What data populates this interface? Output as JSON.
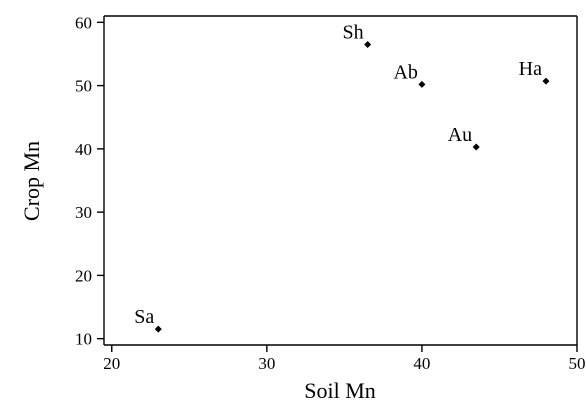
{
  "chart_data": {
    "type": "scatter",
    "title": "",
    "xlabel": "Soil Mn",
    "ylabel": "Crop Mn",
    "xlim": [
      19.5,
      50.0
    ],
    "ylim": [
      9.0,
      61.0
    ],
    "xticks": [
      20,
      30,
      40,
      50
    ],
    "yticks": [
      10,
      20,
      30,
      40,
      50,
      60
    ],
    "grid": false,
    "legend": "none",
    "points": [
      {
        "label": "Sa",
        "x": 23.0,
        "y": 11.5
      },
      {
        "label": "Sh",
        "x": 36.5,
        "y": 56.5
      },
      {
        "label": "Ab",
        "x": 40.0,
        "y": 50.2
      },
      {
        "label": "Au",
        "x": 43.5,
        "y": 40.3
      },
      {
        "label": "Ha",
        "x": 48.0,
        "y": 50.7
      }
    ]
  }
}
